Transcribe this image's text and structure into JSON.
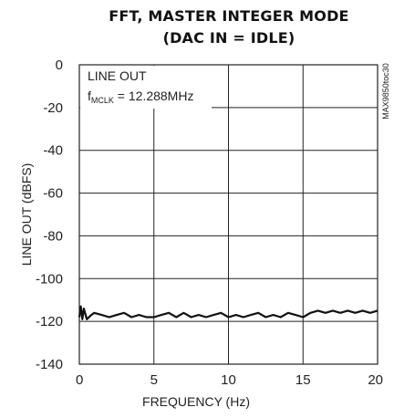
{
  "chart_data": {
    "type": "line",
    "title": "FFT, MASTER INTEGER MODE",
    "subtitle": "(DAC IN = IDLE)",
    "xlabel": "FREQUENCY (Hz)",
    "ylabel": "LINE OUT (dBFS)",
    "xlim": [
      0,
      20
    ],
    "ylim": [
      -140,
      0
    ],
    "x_ticks": [
      0,
      5,
      10,
      15,
      20
    ],
    "y_ticks": [
      0,
      -20,
      -40,
      -60,
      -80,
      -100,
      -120,
      -140
    ],
    "grid": true,
    "annotation_line1": "LINE OUT",
    "annotation_f": "f",
    "annotation_sub": "MCLK",
    "annotation_value": " = 12.288MHz",
    "figure_code": "MAX9850toc30",
    "series": [
      {
        "x": [
          0,
          0.1,
          0.2,
          0.3,
          0.5,
          0.8,
          1,
          1.5,
          2,
          2.5,
          3,
          3.5,
          4,
          4.5,
          5,
          5.5,
          6,
          6.5,
          7,
          7.5,
          8,
          8.5,
          9,
          9.5,
          10,
          10.5,
          11,
          11.5,
          12,
          12.5,
          13,
          13.5,
          14,
          14.5,
          15,
          15.5,
          16,
          16.5,
          17,
          17.5,
          18,
          18.5,
          19,
          19.5,
          20
        ],
        "values": [
          -118,
          -113,
          -119,
          -114,
          -119,
          -117,
          -116,
          -117,
          -118,
          -117,
          -116,
          -118,
          -117,
          -118,
          -118,
          -117,
          -116,
          -118,
          -116,
          -118,
          -117,
          -118,
          -117,
          -116,
          -118,
          -117,
          -118,
          -117,
          -116,
          -118,
          -117,
          -118,
          -116,
          -117,
          -118,
          -116,
          -115,
          -116,
          -115,
          -116,
          -115,
          -116,
          -115,
          -116,
          -115
        ]
      }
    ]
  }
}
